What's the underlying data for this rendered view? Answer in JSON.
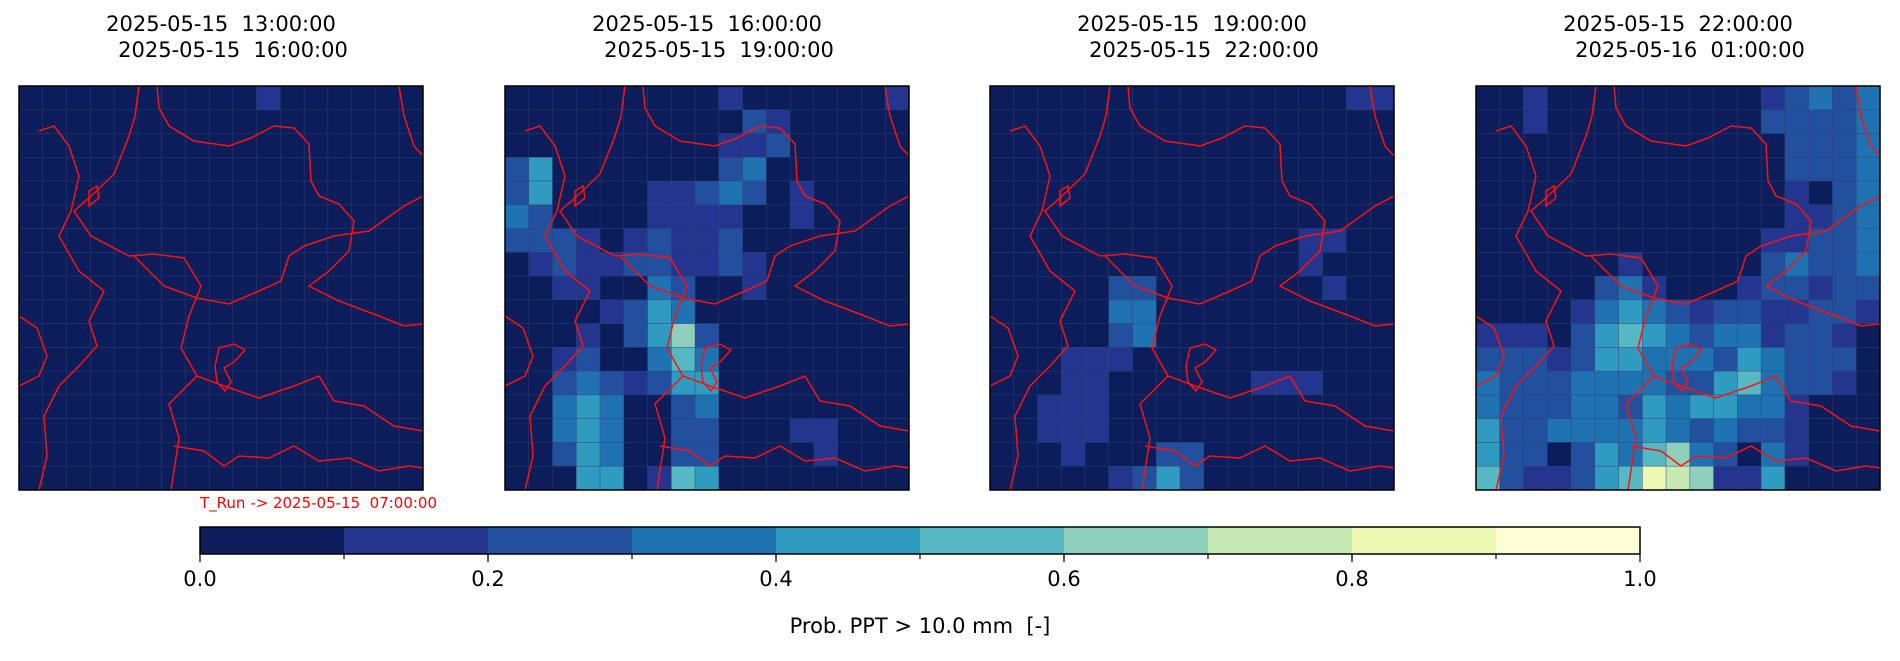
{
  "panels": [
    {
      "title": [
        "2025-05-15  13:00:00",
        "2025-05-15  16:00:00"
      ],
      "grid": [
        [
          0,
          0,
          0,
          0,
          0,
          0,
          0,
          0,
          0,
          0,
          0.15,
          0,
          0,
          0,
          0,
          0,
          0
        ],
        [
          0,
          0,
          0,
          0,
          0,
          0,
          0,
          0,
          0,
          0,
          0,
          0,
          0,
          0,
          0,
          0,
          0
        ],
        [
          0,
          0,
          0,
          0,
          0,
          0,
          0,
          0,
          0,
          0,
          0,
          0,
          0,
          0,
          0,
          0,
          0
        ],
        [
          0,
          0,
          0,
          0,
          0,
          0,
          0,
          0,
          0,
          0,
          0,
          0,
          0,
          0,
          0,
          0,
          0
        ],
        [
          0,
          0,
          0,
          0,
          0,
          0,
          0,
          0,
          0,
          0,
          0,
          0,
          0,
          0,
          0,
          0,
          0
        ],
        [
          0,
          0,
          0,
          0,
          0,
          0,
          0,
          0,
          0,
          0,
          0,
          0,
          0,
          0,
          0,
          0,
          0
        ],
        [
          0,
          0,
          0,
          0,
          0,
          0,
          0,
          0,
          0,
          0,
          0,
          0,
          0,
          0,
          0,
          0,
          0
        ],
        [
          0,
          0,
          0,
          0,
          0,
          0,
          0,
          0,
          0,
          0,
          0,
          0,
          0,
          0,
          0,
          0,
          0
        ],
        [
          0,
          0,
          0,
          0,
          0,
          0,
          0,
          0,
          0,
          0,
          0,
          0,
          0,
          0,
          0,
          0,
          0
        ],
        [
          0,
          0,
          0,
          0,
          0,
          0,
          0,
          0,
          0,
          0,
          0,
          0,
          0,
          0,
          0,
          0,
          0
        ],
        [
          0,
          0,
          0,
          0,
          0,
          0,
          0,
          0,
          0,
          0,
          0,
          0,
          0,
          0,
          0,
          0,
          0
        ],
        [
          0,
          0,
          0,
          0,
          0,
          0,
          0,
          0,
          0,
          0,
          0,
          0,
          0,
          0,
          0,
          0,
          0
        ],
        [
          0,
          0,
          0,
          0,
          0,
          0,
          0,
          0,
          0,
          0,
          0,
          0,
          0,
          0,
          0,
          0,
          0
        ],
        [
          0,
          0,
          0,
          0,
          0,
          0,
          0,
          0,
          0,
          0,
          0,
          0,
          0,
          0,
          0,
          0,
          0
        ],
        [
          0,
          0,
          0,
          0,
          0,
          0,
          0,
          0,
          0,
          0,
          0,
          0,
          0,
          0,
          0,
          0,
          0
        ],
        [
          0,
          0,
          0,
          0,
          0,
          0,
          0,
          0,
          0,
          0,
          0,
          0,
          0,
          0,
          0,
          0,
          0
        ],
        [
          0,
          0,
          0,
          0,
          0,
          0,
          0,
          0,
          0,
          0,
          0,
          0,
          0,
          0,
          0,
          0,
          0
        ]
      ]
    },
    {
      "title": [
        "2025-05-15  16:00:00",
        "2025-05-15  19:00:00"
      ],
      "grid": [
        [
          0,
          0,
          0,
          0,
          0,
          0,
          0,
          0,
          0,
          0.15,
          0,
          0,
          0,
          0,
          0,
          0,
          0.15
        ],
        [
          0,
          0,
          0,
          0,
          0,
          0,
          0,
          0,
          0,
          0,
          0.25,
          0.15,
          0,
          0,
          0,
          0,
          0
        ],
        [
          0,
          0,
          0,
          0,
          0,
          0,
          0,
          0,
          0,
          0.15,
          0.15,
          0.25,
          0,
          0,
          0,
          0,
          0
        ],
        [
          0.2,
          0.45,
          0,
          0,
          0,
          0,
          0,
          0,
          0,
          0.2,
          0.35,
          0,
          0,
          0,
          0,
          0,
          0
        ],
        [
          0.25,
          0.4,
          0,
          0,
          0,
          0,
          0.15,
          0.15,
          0.2,
          0.35,
          0.2,
          0,
          0.15,
          0,
          0,
          0,
          0
        ],
        [
          0.35,
          0.25,
          0,
          0,
          0,
          0,
          0.15,
          0.15,
          0.15,
          0.15,
          0,
          0,
          0.15,
          0,
          0,
          0,
          0
        ],
        [
          0.2,
          0.25,
          0.2,
          0.15,
          0,
          0.15,
          0.2,
          0.15,
          0.15,
          0.2,
          0,
          0,
          0,
          0,
          0,
          0,
          0
        ],
        [
          0,
          0.15,
          0.2,
          0.15,
          0.15,
          0.2,
          0.2,
          0.15,
          0.15,
          0.2,
          0.15,
          0,
          0,
          0,
          0,
          0,
          0
        ],
        [
          0,
          0,
          0.15,
          0.15,
          0,
          0,
          0.35,
          0.25,
          0,
          0,
          0.15,
          0,
          0,
          0,
          0,
          0,
          0
        ],
        [
          0,
          0,
          0,
          0,
          0.15,
          0.2,
          0.4,
          0.3,
          0,
          0,
          0,
          0,
          0,
          0,
          0,
          0,
          0
        ],
        [
          0,
          0,
          0,
          0.15,
          0,
          0.2,
          0.4,
          0.6,
          0.25,
          0,
          0,
          0,
          0,
          0,
          0,
          0,
          0
        ],
        [
          0,
          0,
          0.15,
          0.2,
          0,
          0,
          0.3,
          0.5,
          0.35,
          0,
          0,
          0,
          0,
          0,
          0,
          0,
          0
        ],
        [
          0,
          0,
          0.25,
          0.35,
          0.2,
          0.15,
          0.2,
          0.4,
          0.45,
          0,
          0,
          0,
          0,
          0,
          0,
          0,
          0
        ],
        [
          0,
          0,
          0.3,
          0.4,
          0.35,
          0,
          0,
          0.25,
          0.3,
          0,
          0,
          0,
          0,
          0,
          0,
          0,
          0
        ],
        [
          0,
          0,
          0.35,
          0.4,
          0.35,
          0,
          0,
          0.25,
          0.2,
          0,
          0,
          0,
          0.15,
          0.15,
          0,
          0,
          0
        ],
        [
          0,
          0,
          0.2,
          0.4,
          0.35,
          0,
          0,
          0.2,
          0.2,
          0,
          0,
          0,
          0,
          0.15,
          0,
          0,
          0
        ],
        [
          0,
          0,
          0,
          0.4,
          0.4,
          0,
          0.15,
          0.5,
          0.4,
          0,
          0,
          0,
          0,
          0,
          0,
          0,
          0
        ]
      ]
    },
    {
      "title": [
        "2025-05-15  19:00:00",
        "2025-05-15  22:00:00"
      ],
      "grid": [
        [
          0,
          0,
          0,
          0,
          0,
          0,
          0,
          0,
          0,
          0,
          0,
          0,
          0,
          0,
          0,
          0.15,
          0.15
        ],
        [
          0,
          0,
          0,
          0,
          0,
          0,
          0,
          0,
          0,
          0,
          0,
          0,
          0,
          0,
          0,
          0,
          0
        ],
        [
          0,
          0,
          0,
          0,
          0,
          0,
          0,
          0,
          0,
          0,
          0,
          0,
          0,
          0,
          0,
          0,
          0
        ],
        [
          0,
          0,
          0,
          0,
          0,
          0,
          0,
          0,
          0,
          0,
          0,
          0,
          0,
          0,
          0,
          0,
          0
        ],
        [
          0,
          0,
          0,
          0,
          0,
          0,
          0,
          0,
          0,
          0,
          0,
          0,
          0,
          0,
          0,
          0,
          0
        ],
        [
          0,
          0,
          0,
          0,
          0,
          0,
          0,
          0,
          0,
          0,
          0,
          0,
          0,
          0,
          0,
          0,
          0
        ],
        [
          0,
          0,
          0,
          0,
          0,
          0,
          0,
          0,
          0,
          0,
          0,
          0,
          0,
          0.15,
          0.15,
          0,
          0
        ],
        [
          0,
          0,
          0,
          0,
          0,
          0,
          0,
          0,
          0,
          0,
          0,
          0,
          0,
          0.15,
          0,
          0,
          0
        ],
        [
          0,
          0,
          0,
          0,
          0,
          0.2,
          0.25,
          0,
          0,
          0,
          0,
          0,
          0,
          0,
          0.15,
          0,
          0
        ],
        [
          0,
          0,
          0,
          0,
          0,
          0.35,
          0.35,
          0,
          0,
          0,
          0,
          0,
          0,
          0,
          0,
          0,
          0
        ],
        [
          0,
          0,
          0,
          0,
          0,
          0.25,
          0.3,
          0,
          0,
          0,
          0,
          0,
          0,
          0,
          0,
          0,
          0
        ],
        [
          0,
          0,
          0,
          0.15,
          0.15,
          0.15,
          0,
          0,
          0,
          0,
          0,
          0,
          0,
          0,
          0,
          0,
          0
        ],
        [
          0,
          0,
          0,
          0.15,
          0.15,
          0,
          0,
          0,
          0,
          0,
          0,
          0.15,
          0.15,
          0.15,
          0,
          0,
          0
        ],
        [
          0,
          0,
          0.15,
          0.15,
          0.15,
          0,
          0,
          0,
          0,
          0,
          0,
          0,
          0,
          0,
          0,
          0,
          0
        ],
        [
          0,
          0,
          0.15,
          0.15,
          0.15,
          0,
          0,
          0,
          0,
          0,
          0,
          0,
          0,
          0,
          0,
          0,
          0
        ],
        [
          0,
          0,
          0,
          0.15,
          0,
          0,
          0,
          0.25,
          0.2,
          0,
          0,
          0,
          0,
          0,
          0,
          0,
          0
        ],
        [
          0,
          0,
          0,
          0,
          0,
          0.15,
          0.2,
          0.45,
          0.2,
          0,
          0,
          0,
          0,
          0,
          0,
          0,
          0
        ]
      ]
    },
    {
      "title": [
        "2025-05-15  22:00:00",
        "2025-05-16  01:00:00"
      ],
      "grid": [
        [
          0,
          0,
          0.15,
          0,
          0,
          0,
          0,
          0,
          0,
          0,
          0,
          0,
          0.15,
          0.2,
          0.3,
          0.2,
          0.3
        ],
        [
          0,
          0,
          0.15,
          0,
          0,
          0,
          0,
          0,
          0,
          0,
          0,
          0,
          0.2,
          0.25,
          0.2,
          0.25,
          0.35
        ],
        [
          0,
          0,
          0,
          0,
          0,
          0,
          0,
          0,
          0,
          0,
          0,
          0,
          0,
          0.2,
          0.2,
          0.2,
          0.3
        ],
        [
          0,
          0,
          0,
          0,
          0,
          0,
          0,
          0,
          0,
          0,
          0,
          0,
          0,
          0.2,
          0.2,
          0.25,
          0.35
        ],
        [
          0,
          0,
          0,
          0,
          0,
          0,
          0,
          0,
          0,
          0,
          0,
          0,
          0,
          0.15,
          0,
          0.25,
          0.35
        ],
        [
          0,
          0,
          0,
          0,
          0,
          0,
          0,
          0,
          0,
          0,
          0,
          0,
          0,
          0.15,
          0.15,
          0.2,
          0.3
        ],
        [
          0,
          0,
          0,
          0,
          0,
          0,
          0,
          0,
          0,
          0,
          0,
          0,
          0.15,
          0.15,
          0.2,
          0.25,
          0.3
        ],
        [
          0,
          0,
          0,
          0,
          0,
          0,
          0.15,
          0,
          0,
          0,
          0,
          0,
          0.25,
          0.35,
          0.2,
          0.25,
          0.3
        ],
        [
          0,
          0,
          0,
          0,
          0,
          0.2,
          0.3,
          0.15,
          0,
          0,
          0,
          0.15,
          0.2,
          0.25,
          0.15,
          0.2,
          0.25
        ],
        [
          0,
          0,
          0,
          0,
          0.15,
          0.35,
          0.45,
          0.35,
          0.25,
          0.15,
          0.2,
          0.2,
          0.15,
          0.15,
          0.2,
          0.2,
          0.15
        ],
        [
          0.15,
          0.15,
          0.15,
          0,
          0.25,
          0.4,
          0.5,
          0.45,
          0.3,
          0.2,
          0.35,
          0.3,
          0.15,
          0.2,
          0.25,
          0.15,
          0
        ],
        [
          0.2,
          0.25,
          0.25,
          0.15,
          0.25,
          0.45,
          0.45,
          0.35,
          0.3,
          0.35,
          0.25,
          0.45,
          0.3,
          0.2,
          0.2,
          0.2,
          0
        ],
        [
          0.3,
          0.25,
          0.25,
          0.2,
          0.3,
          0.35,
          0.3,
          0.35,
          0.25,
          0.2,
          0.45,
          0.5,
          0.35,
          0.25,
          0.25,
          0.15,
          0
        ],
        [
          0.35,
          0.25,
          0.2,
          0.25,
          0.35,
          0.3,
          0.25,
          0.4,
          0.35,
          0.4,
          0.45,
          0.35,
          0.3,
          0.15,
          0,
          0,
          0
        ],
        [
          0.4,
          0.25,
          0.25,
          0.3,
          0.35,
          0.3,
          0.3,
          0.4,
          0.3,
          0.25,
          0.3,
          0.2,
          0.25,
          0.15,
          0,
          0,
          0
        ],
        [
          0.4,
          0.25,
          0.2,
          0,
          0.2,
          0.45,
          0.35,
          0.55,
          0.6,
          0.3,
          0.25,
          0,
          0.35,
          0.15,
          0,
          0,
          0
        ],
        [
          0.5,
          0.2,
          0.15,
          0.15,
          0.2,
          0.4,
          0.5,
          0.8,
          0.75,
          0.6,
          0.15,
          0.15,
          0.45,
          0,
          0,
          0,
          0
        ]
      ]
    }
  ],
  "run_label": "T_Run -> 2025-05-15  07:00:00",
  "colorbar": {
    "colors": [
      "#0b1d5a",
      "#243590",
      "#22509f",
      "#1f73b3",
      "#2f9bc1",
      "#55b8c2",
      "#8ed0bb",
      "#c7e9b4",
      "#ecf7b1",
      "#fdfed4"
    ],
    "lim": [
      0,
      1
    ],
    "ticks": [
      {
        "value": 0,
        "label": "0.0"
      },
      {
        "value": 0.2,
        "label": "0.2"
      },
      {
        "value": 0.4,
        "label": "0.4"
      },
      {
        "value": 0.6,
        "label": "0.6"
      },
      {
        "value": 0.8,
        "label": "0.8"
      },
      {
        "value": 1,
        "label": "1.0"
      }
    ],
    "label": "Prob. PPT > 10.0 mm  [-]"
  }
}
